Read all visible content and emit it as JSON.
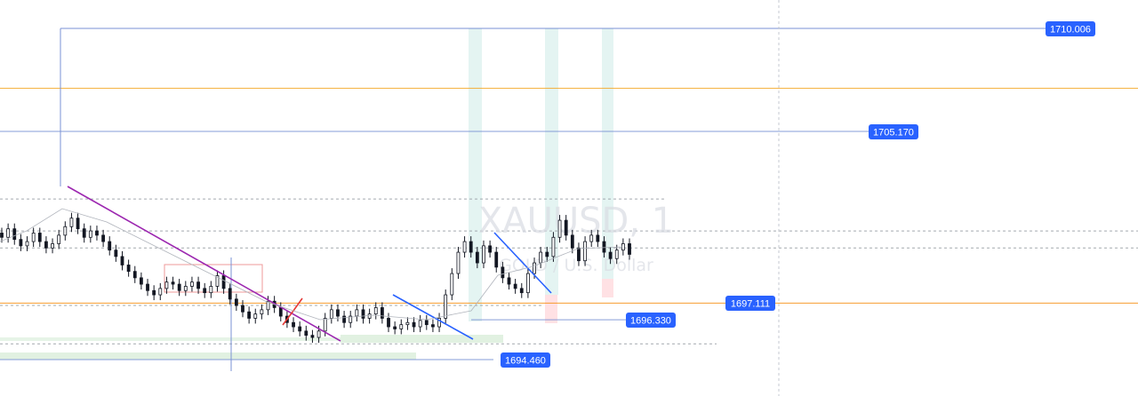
{
  "symbol": "XAUUSD, 1",
  "description": "GOLD / U.S. Dollar",
  "chart_data": {
    "type": "candlestick",
    "ylim": [
      1693.0,
      1711.2
    ],
    "xlim": [
      0,
      1280
    ],
    "price_labels": [
      {
        "id": "level-1710",
        "value": "1710.006",
        "color": "#2962ff"
      },
      {
        "id": "level-1705",
        "value": "1705.170",
        "color": "#2962ff"
      },
      {
        "id": "level-1697",
        "value": "1697.111",
        "color": "#2962ff"
      },
      {
        "id": "level-1696",
        "value": "1696.330",
        "color": "#2962ff"
      },
      {
        "id": "level-1694",
        "value": "1694.460",
        "color": "#2962ff"
      }
    ],
    "closes": [
      1700.2,
      1700.6,
      1700.1,
      1699.8,
      1700.0,
      1700.4,
      1700.0,
      1699.7,
      1699.9,
      1700.3,
      1700.7,
      1701.1,
      1700.6,
      1700.2,
      1700.5,
      1700.3,
      1700.0,
      1699.6,
      1699.3,
      1698.9,
      1698.6,
      1698.3,
      1698.0,
      1697.7,
      1697.5,
      1697.8,
      1698.1,
      1698.0,
      1697.7,
      1697.9,
      1698.1,
      1697.8,
      1697.6,
      1697.9,
      1698.4,
      1697.8,
      1697.3,
      1697.0,
      1696.7,
      1696.4,
      1696.6,
      1696.8,
      1697.2,
      1696.9,
      1696.5,
      1696.2,
      1696.0,
      1695.8,
      1695.6,
      1695.5,
      1695.8,
      1696.4,
      1696.8,
      1696.5,
      1696.2,
      1696.5,
      1696.8,
      1696.4,
      1696.6,
      1696.9,
      1696.4,
      1696.0,
      1695.9,
      1696.1,
      1696.2,
      1696.0,
      1696.3,
      1696.1,
      1696.0,
      1696.4,
      1697.5,
      1698.5,
      1699.5,
      1700.0,
      1699.5,
      1699.0,
      1699.8,
      1699.5,
      1698.8,
      1698.3,
      1698.0,
      1697.8,
      1697.6,
      1698.5,
      1699.0,
      1699.5,
      1699.3,
      1700.2,
      1701.0,
      1700.3,
      1699.7,
      1699.1,
      1700.0,
      1700.3,
      1700.0,
      1699.5,
      1699.2,
      1699.6,
      1699.9,
      1699.4
    ],
    "levels": [
      {
        "price": 1710.006,
        "color": "#6a87d0",
        "style": "solid"
      },
      {
        "price": 1705.17,
        "color": "#7a92d4",
        "style": "solid"
      },
      {
        "price": 1707.2,
        "color": "#f5a623",
        "style": "solid"
      },
      {
        "price": 1697.111,
        "color": "#f7931a",
        "style": "solid"
      },
      {
        "price": 1696.33,
        "color": "#7a92d4",
        "style": "solid"
      },
      {
        "price": 1694.46,
        "color": "#7a92d4",
        "style": "solid"
      },
      {
        "price": 1700.5,
        "color": "#9aa0a6",
        "style": "dashed"
      },
      {
        "price": 1699.7,
        "color": "#9aa0a6",
        "style": "dashed"
      },
      {
        "price": 1702.0,
        "color": "#9aa0a6",
        "style": "dashed"
      },
      {
        "price": 1697.0,
        "color": "#9aa0a6",
        "style": "dashed"
      },
      {
        "price": 1695.2,
        "color": "#9aa0a6",
        "style": "dashed"
      }
    ]
  },
  "colors": {
    "candle": "#131722",
    "trend_purple": "#9c27b0",
    "trend_blue": "#2962ff",
    "trend_red": "#e53935",
    "highlight_teal": "#b2dfdb",
    "highlight_green": "#c8e6c9",
    "highlight_pink": "#ffcdd2",
    "badge_blue": "#2962ff"
  }
}
